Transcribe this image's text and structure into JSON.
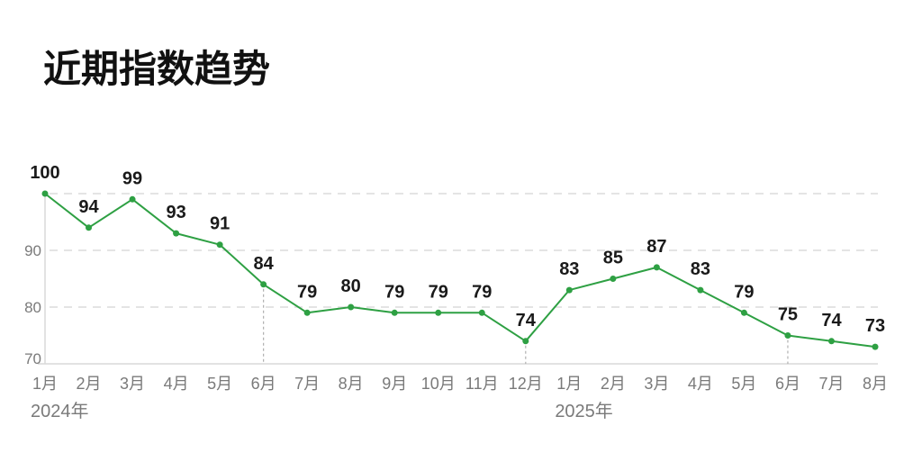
{
  "chart_data": {
    "type": "line",
    "title": "近期指数趋势",
    "categories": [
      "1月",
      "2月",
      "3月",
      "4月",
      "5月",
      "6月",
      "7月",
      "8月",
      "9月",
      "10月",
      "11月",
      "12月",
      "1月",
      "2月",
      "3月",
      "4月",
      "5月",
      "6月",
      "7月",
      "8月"
    ],
    "year_labels": [
      {
        "label": "2024年",
        "category_index": 0
      },
      {
        "label": "2025年",
        "category_index": 12
      }
    ],
    "values": [
      100,
      94,
      99,
      93,
      91,
      84,
      79,
      80,
      79,
      79,
      79,
      74,
      83,
      85,
      87,
      83,
      79,
      75,
      74,
      73
    ],
    "data_labels": true,
    "yticks": [
      70,
      80,
      90
    ],
    "ygrid": [
      80,
      90,
      100
    ],
    "ylim": [
      70,
      100
    ],
    "grid": true,
    "marker_lines_at": [
      5,
      11,
      17
    ],
    "colors": {
      "line": "#2ea043",
      "grid": "#dcdcdc",
      "axis_text": "#7a7a7a",
      "data_label": "#1a1a1a"
    }
  }
}
